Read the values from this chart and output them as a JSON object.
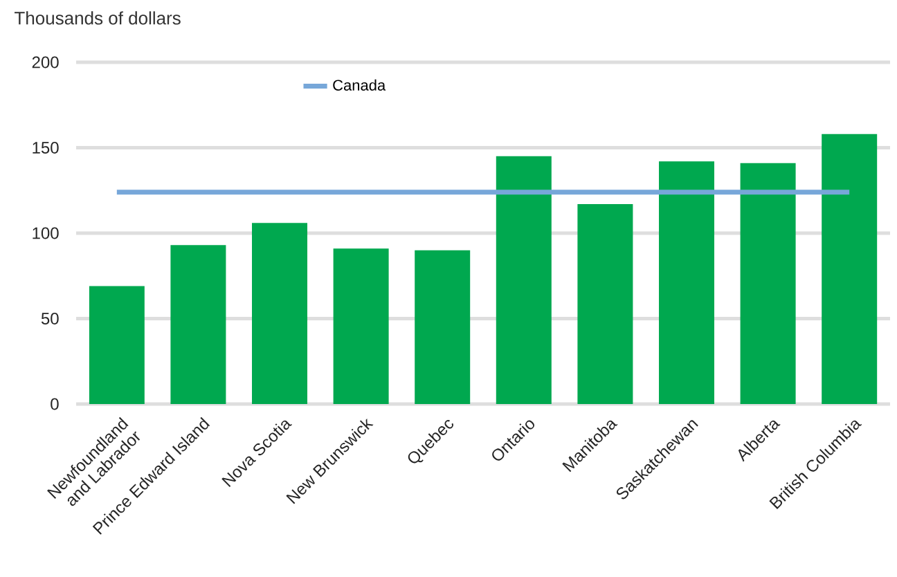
{
  "chart_data": {
    "type": "bar",
    "ylabel": "Thousands of dollars",
    "categories": [
      "Newfoundland and Labrador",
      "Prince Edward Island",
      "Nova Scotia",
      "New Brunswick",
      "Quebec",
      "Ontario",
      "Manitoba",
      "Saskatchewan",
      "Alberta",
      "British Columbia"
    ],
    "series": [
      {
        "color": "#00a84f",
        "values": [
          69,
          93,
          106,
          91,
          90,
          145,
          117,
          142,
          141,
          158
        ]
      }
    ],
    "ref_lines": [
      {
        "axis": "y",
        "value": 124,
        "label": "Canada",
        "color": "#77a7d9"
      }
    ],
    "ylim": [
      0,
      200
    ],
    "yticks": [
      0,
      50,
      100,
      150,
      200
    ],
    "grid": "y",
    "legend": "top"
  }
}
